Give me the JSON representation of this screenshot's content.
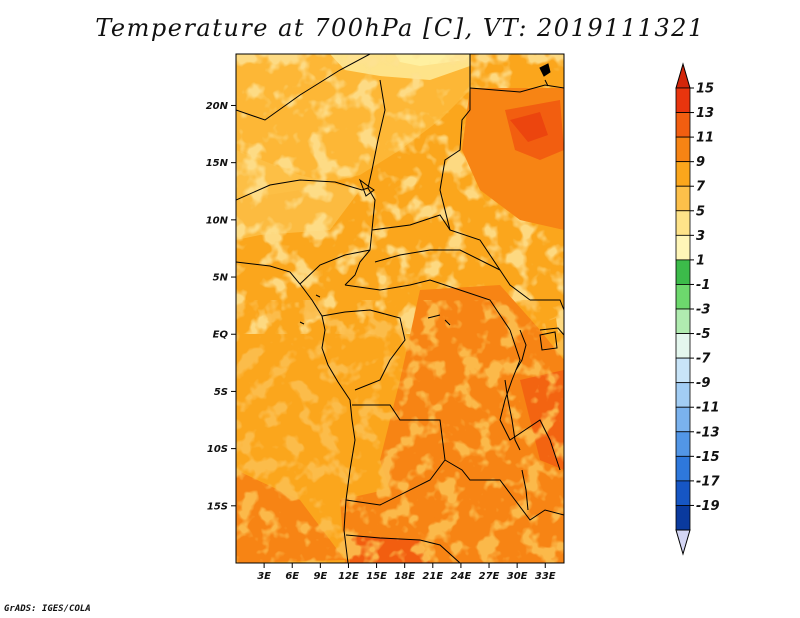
{
  "title": "Temperature at 700hPa [C], VT: 2019111321",
  "credit": "GrADS: IGES/COLA",
  "map": {
    "lat_ticks": [
      "20N",
      "15N",
      "10N",
      "5N",
      "EQ",
      "5S",
      "10S",
      "15S"
    ],
    "lon_ticks": [
      "3E",
      "6E",
      "9E",
      "12E",
      "15E",
      "18E",
      "21E",
      "24E",
      "27E",
      "30E",
      "33E"
    ],
    "lon_range": [
      0,
      35
    ],
    "lat_range": [
      -20,
      24.5
    ]
  },
  "colorbar": {
    "labels": [
      "15",
      "13",
      "11",
      "9",
      "7",
      "5",
      "3",
      "1",
      "-1",
      "-3",
      "-5",
      "-7",
      "-9",
      "-11",
      "-13",
      "-15",
      "-17",
      "-19"
    ],
    "colors": [
      "#e8350e",
      "#f25e10",
      "#f78414",
      "#fba61c",
      "#fdc04a",
      "#fee389",
      "#fff6b8",
      "#3cbb4a",
      "#6dd86d",
      "#b0ecb0",
      "#e4f7ee",
      "#c8e4f8",
      "#a2cdf4",
      "#7ab2ee",
      "#5296e6",
      "#2e78dc",
      "#1656c4",
      "#0a3a9e",
      "#051a66"
    ],
    "top_arrow_color": "#d2260a",
    "bottom_arrow_color": "#d4d6f4"
  }
}
